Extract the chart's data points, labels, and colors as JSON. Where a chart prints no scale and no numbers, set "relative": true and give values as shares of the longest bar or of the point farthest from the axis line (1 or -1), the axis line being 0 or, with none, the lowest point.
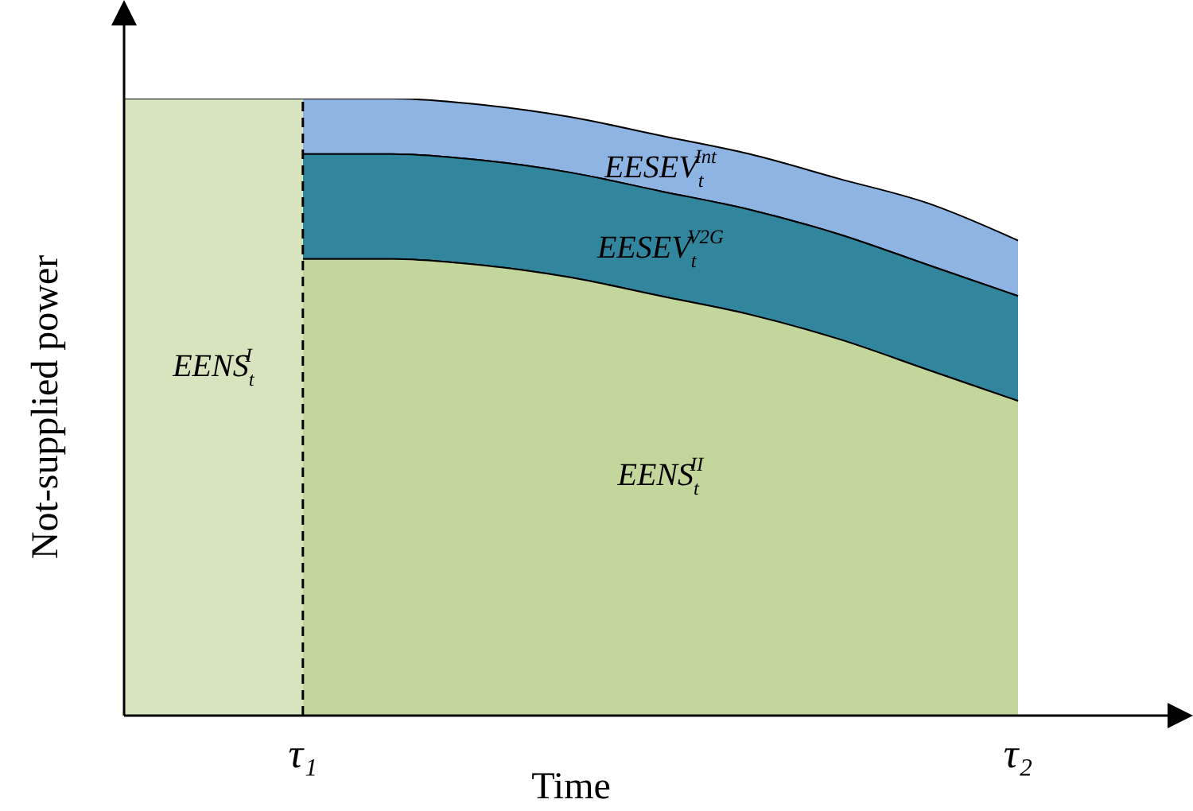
{
  "chart_data": {
    "type": "area",
    "relative": true,
    "xlabel": "Time",
    "ylabel": "Not-supplied power",
    "categories": [
      null,
      null,
      "τ₁",
      null,
      null,
      null,
      null,
      null,
      null,
      null,
      "τ₂"
    ],
    "series": [
      {
        "name": "EESEV$_{t}$$^{Int}$",
        "color": "#8eb4e3",
        "values": [
          null,
          null,
          1.0,
          1.0,
          0.99,
          0.97,
          0.94,
          0.91,
          0.87,
          0.83,
          0.77
        ]
      },
      {
        "name": "EESEV$_{t}$$^{V2G}$",
        "color": "#31859c",
        "values": [
          null,
          null,
          0.91,
          0.91,
          0.9,
          0.88,
          0.85,
          0.82,
          0.78,
          0.73,
          0.68
        ]
      },
      {
        "name": "EENS$_{t}$$^{II}$",
        "color": "#c3d69b",
        "values": [
          null,
          null,
          0.74,
          0.74,
          0.73,
          0.71,
          0.68,
          0.65,
          0.61,
          0.56,
          0.51
        ]
      },
      {
        "name": "EENS$_{t}$$^{I}$",
        "color": "#d7e4bd",
        "values": [
          1,
          1,
          1,
          null,
          null,
          null,
          null,
          null,
          null,
          null,
          null
        ]
      }
    ],
    "ref_lines": [
      {
        "axis": "x",
        "value": "τ₁",
        "line_style": "dashed",
        "color": "#000000"
      }
    ],
    "legend": false,
    "grid": false
  }
}
